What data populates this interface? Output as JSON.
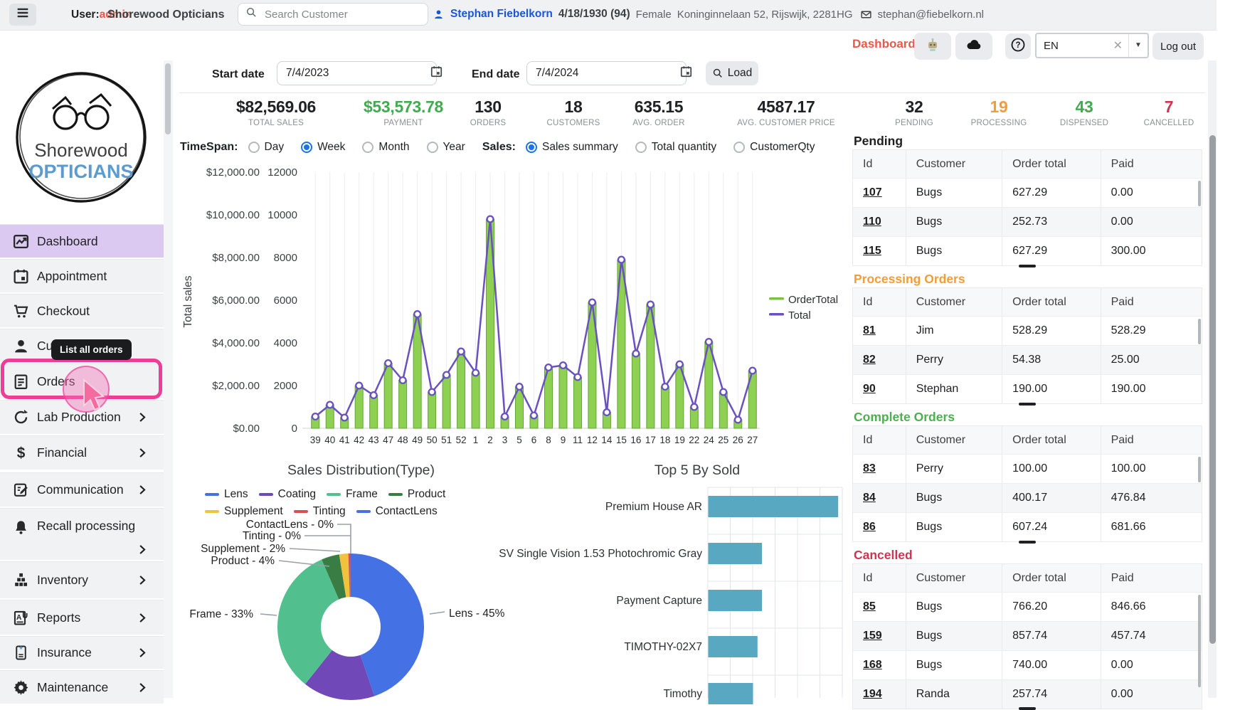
{
  "topbar": {
    "user_label": "User:",
    "user_name": "admin",
    "store_name": "Shorewood Opticians",
    "search_placeholder": "Search Customer",
    "patient": {
      "name": "Stephan Fiebelkorn",
      "dob": "4/18/1930 (94)",
      "gender": "Female",
      "address": "Koninginnelaan 52, Rijswijk, 2281HG",
      "email": "stephan@fiebelkorn.nl"
    }
  },
  "toolbar": {
    "active_page": "Dashboard",
    "language": "EN",
    "logout_label": "Log out"
  },
  "sidebar": {
    "logo_line1": "Shorewood",
    "logo_line2": "OPTICIANS",
    "tooltip": "List all orders",
    "items": [
      {
        "label": "Dashboard",
        "icon": "dashboard",
        "active": true,
        "chevron": false
      },
      {
        "label": "Appointment",
        "icon": "calendar",
        "chevron": false
      },
      {
        "label": "Checkout",
        "icon": "cart",
        "chevron": false
      },
      {
        "label": "Customer",
        "icon": "person",
        "chevron": false
      },
      {
        "label": "Orders",
        "icon": "orders",
        "highlighted": true,
        "chevron": false
      },
      {
        "label": "Lab Production",
        "icon": "refresh",
        "chevron": true
      },
      {
        "label": "Financial",
        "icon": "dollar",
        "chevron": true
      },
      {
        "label": "Communication",
        "icon": "compose",
        "chevron": true
      },
      {
        "label": "Recall processing",
        "icon": "bell",
        "chevron": true
      },
      {
        "label": "Inventory",
        "icon": "inventory",
        "chevron": true
      },
      {
        "label": "Reports",
        "icon": "report",
        "chevron": true
      },
      {
        "label": "Insurance",
        "icon": "insurance",
        "chevron": true
      },
      {
        "label": "Maintenance",
        "icon": "gear",
        "chevron": true
      }
    ]
  },
  "controls": {
    "start_date_label": "Start date",
    "start_date": "7/4/2023",
    "end_date_label": "End date",
    "end_date": "7/4/2024",
    "load_label": "Load"
  },
  "filters": {
    "timespan_label": "TimeSpan:",
    "timespan_options": [
      {
        "label": "Day",
        "selected": false
      },
      {
        "label": "Week",
        "selected": true
      },
      {
        "label": "Month",
        "selected": false
      },
      {
        "label": "Year",
        "selected": false
      }
    ],
    "sales_label": "Sales:",
    "sales_options": [
      {
        "label": "Sales summary",
        "selected": true
      },
      {
        "label": "Total quantity",
        "selected": false
      },
      {
        "label": "CustomerQty",
        "selected": false
      }
    ]
  },
  "stats": [
    {
      "value": "$82,569.06",
      "label": "TOTAL SALES",
      "color": "#202124"
    },
    {
      "value": "$53,573.78",
      "label": "PAYMENT",
      "color": "#41ab4f"
    },
    {
      "value": "130",
      "label": "ORDERS",
      "color": "#202124"
    },
    {
      "value": "18",
      "label": "CUSTOMERS",
      "color": "#202124"
    },
    {
      "value": "635.15",
      "label": "AVG. ORDER",
      "color": "#202124"
    },
    {
      "value": "4587.17",
      "label": "AVG. CUSTOMER PRICE",
      "color": "#202124"
    },
    {
      "value": "32",
      "label": "PENDING",
      "color": "#202124"
    },
    {
      "value": "19",
      "label": "PROCESSING",
      "color": "#f29d38"
    },
    {
      "value": "43",
      "label": "DISPENSED",
      "color": "#41ab4f"
    },
    {
      "value": "7",
      "label": "CANCELLED",
      "color": "#d23352"
    }
  ],
  "chart_data": [
    {
      "type": "bar",
      "title": "",
      "ylabel": "Total sales",
      "categories": [
        "39",
        "40",
        "41",
        "42",
        "43",
        "47",
        "48",
        "49",
        "50",
        "51",
        "52",
        "1",
        "2",
        "3",
        "5",
        "6",
        "8",
        "9",
        "11",
        "12",
        "14",
        "15",
        "16",
        "17",
        "18",
        "19",
        "22",
        "24",
        "25",
        "26",
        "27"
      ],
      "series": [
        {
          "name": "OrderTotal",
          "kind": "bar",
          "color": "#7cc242",
          "fill": "#8ed052",
          "values": [
            550,
            1100,
            500,
            2000,
            1550,
            3050,
            2250,
            5350,
            1700,
            2500,
            3600,
            2600,
            9800,
            550,
            1950,
            600,
            2850,
            2950,
            2400,
            5900,
            750,
            7900,
            3500,
            5800,
            1950,
            3000,
            1000,
            4050,
            1700,
            400,
            2700
          ]
        },
        {
          "name": "Total",
          "kind": "line",
          "color": "#6a51c0",
          "values": [
            550,
            1100,
            500,
            2000,
            1550,
            3050,
            2250,
            5350,
            1700,
            2500,
            3600,
            2600,
            9800,
            550,
            1950,
            600,
            2850,
            2950,
            2400,
            5900,
            750,
            7900,
            3500,
            5800,
            1950,
            3000,
            1000,
            4050,
            1700,
            400,
            2700
          ]
        }
      ],
      "ylim": [
        0,
        12000
      ],
      "ytick_step": 2000,
      "grid": "vertical",
      "legend_position": "right",
      "y_axis_left_format": "currency",
      "y_axis_right_format": "number"
    },
    {
      "type": "pie",
      "donut": true,
      "title": "Sales Distribution(Type)",
      "labels": [
        "Lens",
        "Coating",
        "Frame",
        "Product",
        "Supplement",
        "Tinting",
        "ContactLens"
      ],
      "values": [
        45,
        16,
        33,
        4,
        2,
        0,
        0
      ],
      "colors": [
        "#4472e4",
        "#7048b8",
        "#52c08e",
        "#3a7d44",
        "#f0c23e",
        "#d94f4f",
        "#4472e4"
      ],
      "callouts": [
        "ContactLens - 0%",
        "Tinting - 0%",
        "Supplement - 2%",
        "Product - 4%",
        "Frame - 33%",
        "Lens - 45%"
      ]
    },
    {
      "type": "bar",
      "orientation": "horizontal",
      "title": "Top 5 By Sold",
      "categories": [
        "Premium House AR",
        "SV Single Vision 1.53 Photochromic Gray",
        "Payment Capture",
        "TIMOTHY-02X7",
        "Timothy"
      ],
      "values": [
        29,
        12,
        12,
        11,
        10
      ],
      "xlim": [
        0,
        30
      ],
      "color": "#57a8c0",
      "grid": true
    }
  ],
  "orders_panel": {
    "columns": [
      "Id",
      "Customer",
      "Order total",
      "Paid"
    ],
    "sections": [
      {
        "title": "Pending",
        "title_color": "#1f1f1f",
        "rows": [
          [
            "107",
            "Bugs",
            "627.29",
            "0.00"
          ],
          [
            "110",
            "Bugs",
            "252.73",
            "0.00"
          ],
          [
            "115",
            "Bugs",
            "627.29",
            "300.00"
          ]
        ]
      },
      {
        "title": "Processing Orders",
        "title_color": "#f29d38",
        "rows": [
          [
            "81",
            "Jim",
            "528.29",
            "528.29"
          ],
          [
            "82",
            "Perry",
            "54.38",
            "25.00"
          ],
          [
            "90",
            "Stephan",
            "190.00",
            "190.00"
          ]
        ]
      },
      {
        "title": "Complete Orders",
        "title_color": "#4caf50",
        "rows": [
          [
            "83",
            "Perry",
            "100.00",
            "100.00"
          ],
          [
            "84",
            "Bugs",
            "400.17",
            "476.84"
          ],
          [
            "86",
            "Bugs",
            "607.24",
            "681.66"
          ]
        ]
      },
      {
        "title": "Cancelled",
        "title_color": "#d23352",
        "rows": [
          [
            "85",
            "Bugs",
            "766.20",
            "846.66"
          ],
          [
            "159",
            "Bugs",
            "857.74",
            "457.74"
          ],
          [
            "168",
            "Bugs",
            "740.00",
            "0.00"
          ],
          [
            "194",
            "Randa",
            "257.74",
            "0.00"
          ]
        ]
      }
    ]
  }
}
